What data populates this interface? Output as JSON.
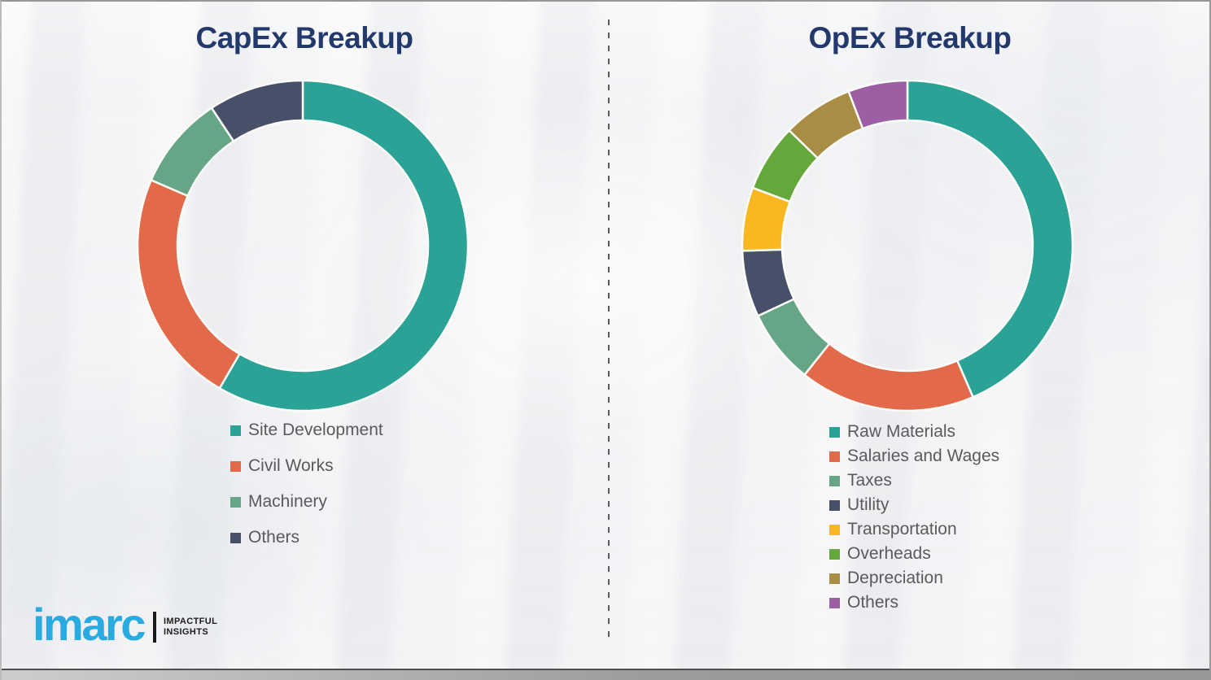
{
  "page": {
    "background_color": "#f2f2f4",
    "divider_color": "#58595b",
    "title_color": "#24396b",
    "legend_text_color": "#595a5c"
  },
  "logo": {
    "brand": "imarc",
    "brand_color": "#29abe2",
    "tagline_line1": "IMPACTFUL",
    "tagline_line2": "INSIGHTS"
  },
  "chart_data": [
    {
      "type": "pie",
      "variant": "donut",
      "title": "CapEx Breakup",
      "categories": [
        "Site Development",
        "Civil Works",
        "Machinery",
        "Others"
      ],
      "values": [
        58.4,
        23.1,
        9.2,
        9.3
      ],
      "colors": [
        "#2aa295",
        "#e2694a",
        "#66a585",
        "#485069"
      ],
      "start_angle_deg": 0,
      "direction": "clockwise",
      "inner_radius_ratio": 0.76,
      "legend_position": "below-left",
      "note": "Percentages estimated from arc angles; no numeric labels shown in image"
    },
    {
      "type": "pie",
      "variant": "donut",
      "title": "OpEx Breakup",
      "categories": [
        "Raw Materials",
        "Salaries and Wages",
        "Taxes",
        "Utility",
        "Transportation",
        "Overheads",
        "Depreciation",
        "Others"
      ],
      "values": [
        43.5,
        17.2,
        7.3,
        6.5,
        6.2,
        6.6,
        6.9,
        5.8
      ],
      "colors": [
        "#2aa295",
        "#e2694a",
        "#66a585",
        "#485069",
        "#f9b81f",
        "#64a83c",
        "#a98d44",
        "#9c5fa4"
      ],
      "start_angle_deg": 0,
      "direction": "clockwise",
      "inner_radius_ratio": 0.76,
      "legend_position": "below-left",
      "note": "Percentages estimated from arc angles; no numeric labels shown in image"
    }
  ]
}
